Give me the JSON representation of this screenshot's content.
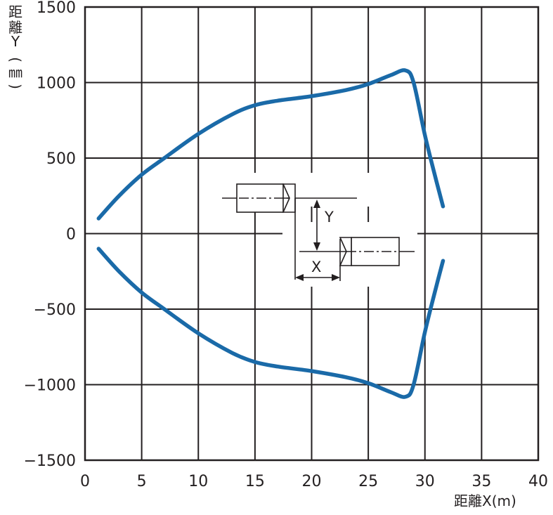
{
  "chart_data": {
    "type": "line",
    "xlabel": "距離X(m)",
    "ylabel_chars": [
      "距",
      "離",
      "Y",
      "(",
      "㎜",
      ")"
    ],
    "xlim": [
      0,
      40
    ],
    "ylim": [
      -1500,
      1500
    ],
    "x_ticks": [
      0,
      5,
      10,
      15,
      20,
      25,
      30,
      35,
      40
    ],
    "y_ticks": [
      1500,
      1000,
      500,
      0,
      -500,
      -1000,
      -1500
    ],
    "y_tick_labels": [
      "1500",
      "1000",
      "500",
      "0",
      "−500",
      "−1000",
      "−1500"
    ],
    "grid": true,
    "legend": "none",
    "color": "#1a6aa8",
    "series": [
      {
        "x": [
          1.2,
          3,
          5,
          7,
          10,
          13,
          15,
          17,
          20,
          23,
          25,
          27,
          28.3,
          29,
          30,
          31,
          31.6
        ],
        "y": [
          100,
          250,
          390,
          500,
          660,
          790,
          850,
          880,
          910,
          950,
          990,
          1050,
          1080,
          1000,
          650,
          350,
          180
        ]
      },
      {
        "x": [
          1.2,
          3,
          5,
          7,
          10,
          13,
          15,
          17,
          20,
          23,
          25,
          27,
          28.3,
          29,
          30,
          31,
          31.6
        ],
        "y": [
          -100,
          -250,
          -390,
          -500,
          -660,
          -790,
          -850,
          -880,
          -910,
          -950,
          -990,
          -1050,
          -1080,
          -1000,
          -650,
          -350,
          -180
        ]
      }
    ],
    "inset_labels": {
      "y": "Y",
      "x": "X"
    }
  }
}
